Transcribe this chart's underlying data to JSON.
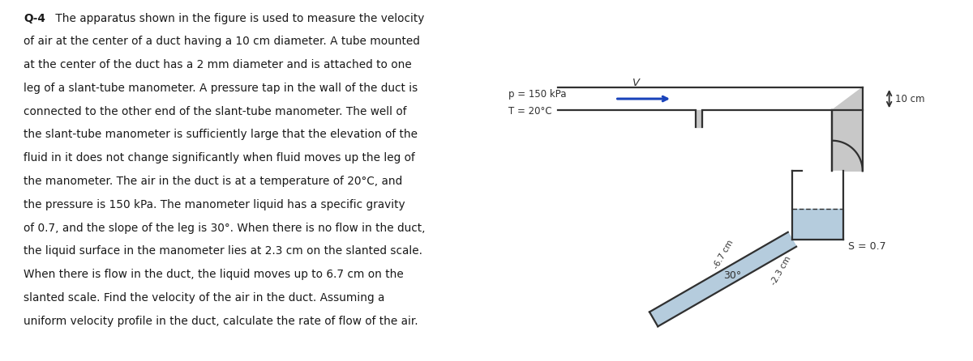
{
  "bg_color": "#ffffff",
  "text_color": "#1a1a1a",
  "question_bold": "Q-4",
  "question_rest_line1": " The apparatus shown in the figure is used to measure the velocity",
  "question_lines": [
    "of air at the center of a duct having a 10 cm diameter. A tube mounted",
    "at the center of the duct has a 2 mm diameter and is attached to one",
    "leg of a slant-tube manometer. A pressure tap in the wall of the duct is",
    "connected to the other end of the slant-tube manometer. The well of",
    "the slant-tube manometer is sufficiently large that the elevation of the",
    "fluid in it does not change significantly when fluid moves up the leg of",
    "the manometer. The air in the duct is at a temperature of 20°C, and",
    "the pressure is 150 kPa. The manometer liquid has a specific gravity",
    "of 0.7, and the slope of the leg is 30°. When there is no flow in the duct,",
    "the liquid surface in the manometer lies at 2.3 cm on the slanted scale.",
    "When there is flow in the duct, the liquid moves up to 6.7 cm on the",
    "slanted scale. Find the velocity of the air in the duct. Assuming a",
    "uniform velocity profile in the duct, calculate the rate of flow of the air."
  ],
  "label_p": "p = 150 kPa",
  "label_T": "T = 20°C",
  "label_10cm": "10 cm",
  "label_67": "-6.7 cm",
  "label_23": "-2.3 cm",
  "label_30": "30°",
  "label_S": "S = 0.7",
  "label_V": "V",
  "pipe_gray": "#c8c8c8",
  "pipe_outline": "#303030",
  "fluid_blue": "#a8c4d8",
  "arrow_blue": "#1a44bb",
  "dim_line_color": "#303030"
}
